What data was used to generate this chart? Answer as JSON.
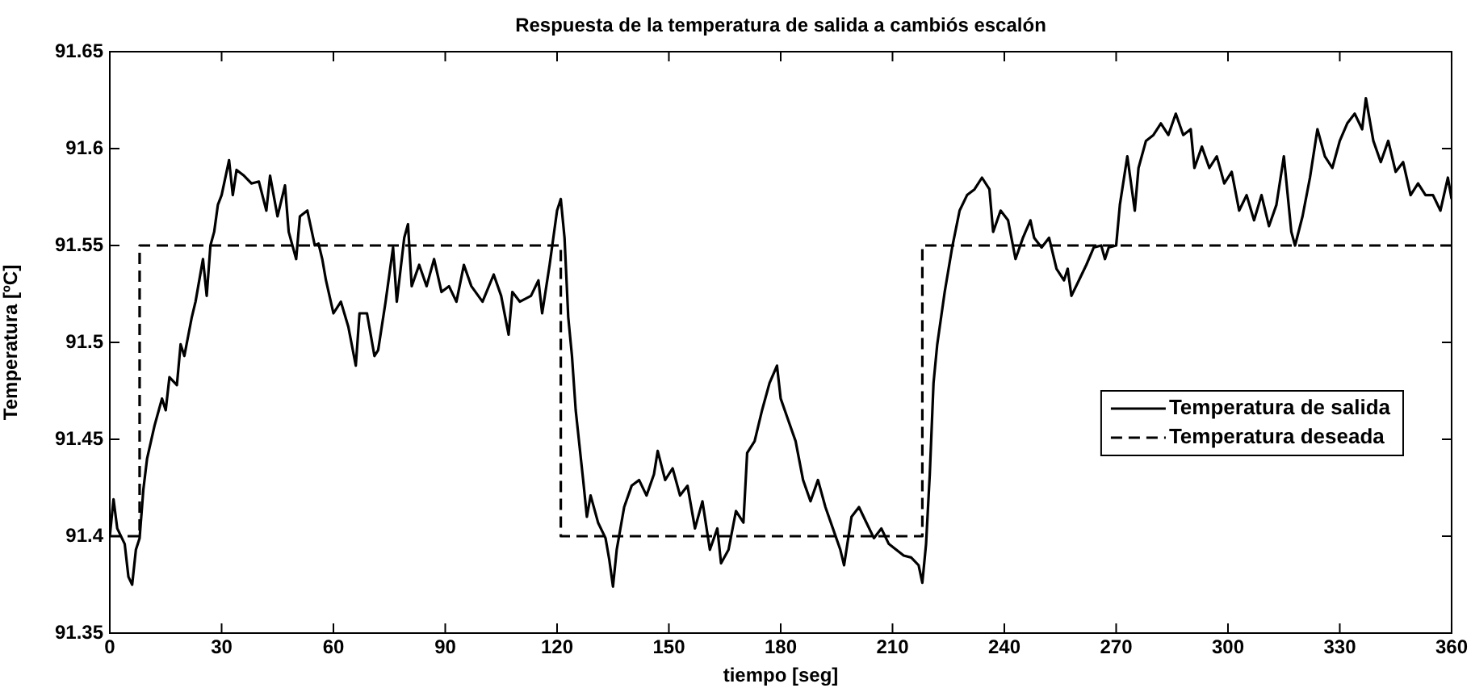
{
  "chart_data": {
    "type": "line",
    "title": "Respuesta de la temperatura de salida a cambiós escalón",
    "xlabel": "tiempo [seg]",
    "ylabel": "Temperatura [ºC]",
    "xlim": [
      0,
      360
    ],
    "xticks": [
      0,
      30,
      60,
      90,
      120,
      150,
      180,
      210,
      240,
      270,
      300,
      330,
      360
    ],
    "ylim": [
      91.35,
      91.65
    ],
    "yticks": [
      91.35,
      91.4,
      91.45,
      91.5,
      91.55,
      91.6,
      91.65
    ],
    "grid": false,
    "legend": "right",
    "marker": "none",
    "series": [
      {
        "name": "Temperatura de salida",
        "color": "#000000",
        "line_style": "solid",
        "x": [
          0,
          1,
          2,
          4,
          5,
          6,
          7,
          8,
          9,
          10,
          12,
          14,
          15,
          16,
          18,
          19,
          20,
          22,
          23,
          25,
          26,
          27,
          28,
          29,
          30,
          32,
          33,
          34,
          36,
          38,
          40,
          42,
          43,
          45,
          47,
          48,
          50,
          51,
          53,
          55,
          56,
          57,
          58,
          60,
          62,
          64,
          66,
          67,
          69,
          71,
          72,
          74,
          76,
          77,
          79,
          80,
          81,
          83,
          85,
          87,
          89,
          91,
          93,
          95,
          97,
          100,
          103,
          105,
          107,
          108,
          110,
          113,
          115,
          116,
          118,
          119,
          120,
          121,
          122,
          123,
          124,
          125,
          127,
          128,
          129,
          131,
          133,
          134,
          135,
          136,
          138,
          140,
          142,
          144,
          146,
          147,
          149,
          151,
          153,
          155,
          157,
          159,
          161,
          163,
          164,
          166,
          168,
          170,
          171,
          173,
          175,
          177,
          179,
          180,
          182,
          184,
          186,
          188,
          190,
          192,
          194,
          196,
          197,
          199,
          201,
          203,
          205,
          207,
          209,
          211,
          213,
          215,
          217,
          218,
          219,
          220,
          221,
          222,
          224,
          226,
          228,
          230,
          232,
          234,
          236,
          237,
          239,
          241,
          243,
          245,
          247,
          248,
          250,
          252,
          254,
          256,
          257,
          258,
          260,
          262,
          264,
          266,
          267,
          268,
          270,
          271,
          273,
          275,
          276,
          278,
          280,
          282,
          284,
          286,
          288,
          290,
          291,
          293,
          295,
          297,
          299,
          301,
          303,
          305,
          307,
          309,
          311,
          313,
          315,
          317,
          318,
          320,
          322,
          324,
          326,
          328,
          330,
          332,
          334,
          336,
          337,
          339,
          341,
          343,
          345,
          347,
          349,
          351,
          353,
          355,
          357,
          359,
          360
        ],
        "values": [
          91.4,
          91.419,
          91.404,
          91.396,
          91.379,
          91.375,
          91.393,
          91.399,
          91.424,
          91.44,
          91.457,
          91.471,
          91.465,
          91.482,
          91.478,
          91.499,
          91.493,
          91.513,
          91.521,
          91.543,
          91.524,
          91.55,
          91.557,
          91.571,
          91.576,
          91.594,
          91.576,
          91.589,
          91.586,
          91.582,
          91.583,
          91.568,
          91.586,
          91.565,
          91.581,
          91.557,
          91.543,
          91.565,
          91.568,
          91.55,
          91.551,
          91.543,
          91.532,
          91.515,
          91.521,
          91.508,
          91.488,
          91.515,
          91.515,
          91.493,
          91.496,
          91.521,
          91.549,
          91.521,
          91.554,
          91.561,
          91.529,
          91.54,
          91.529,
          91.543,
          91.526,
          91.529,
          91.521,
          91.54,
          91.529,
          91.521,
          91.535,
          91.524,
          91.504,
          91.526,
          91.521,
          91.524,
          91.532,
          91.515,
          91.54,
          91.554,
          91.568,
          91.574,
          91.554,
          91.513,
          91.493,
          91.465,
          91.429,
          91.41,
          91.421,
          91.407,
          91.399,
          91.388,
          91.374,
          91.393,
          91.415,
          91.426,
          91.429,
          91.421,
          91.432,
          91.444,
          91.429,
          91.435,
          91.421,
          91.426,
          91.404,
          91.418,
          91.393,
          91.404,
          91.386,
          91.393,
          91.413,
          91.407,
          91.443,
          91.449,
          91.465,
          91.479,
          91.488,
          91.471,
          91.46,
          91.449,
          91.429,
          91.418,
          91.429,
          91.415,
          91.404,
          91.393,
          91.385,
          91.41,
          91.415,
          91.407,
          91.399,
          91.404,
          91.396,
          91.393,
          91.39,
          91.389,
          91.385,
          91.376,
          91.396,
          91.432,
          91.479,
          91.499,
          91.526,
          91.549,
          91.568,
          91.576,
          91.579,
          91.585,
          91.579,
          91.557,
          91.568,
          91.563,
          91.543,
          91.554,
          91.563,
          91.554,
          91.549,
          91.554,
          91.538,
          91.532,
          91.538,
          91.524,
          91.532,
          91.54,
          91.549,
          91.55,
          91.543,
          91.549,
          91.55,
          91.571,
          91.596,
          91.568,
          91.59,
          91.604,
          91.607,
          91.613,
          91.607,
          91.618,
          91.607,
          91.61,
          91.59,
          91.601,
          91.59,
          91.596,
          91.582,
          91.588,
          91.568,
          91.576,
          91.563,
          91.576,
          91.56,
          91.571,
          91.596,
          91.557,
          91.55,
          91.565,
          91.585,
          91.61,
          91.596,
          91.59,
          91.604,
          91.613,
          91.618,
          91.61,
          91.626,
          91.604,
          91.593,
          91.604,
          91.588,
          91.593,
          91.576,
          91.582,
          91.576,
          91.576,
          91.568,
          91.585,
          91.574
        ]
      },
      {
        "name": "Temperatura deseada",
        "color": "#000000",
        "line_style": "dashed",
        "x": [
          0,
          8,
          8,
          121,
          121,
          218,
          218,
          360
        ],
        "values": [
          91.4,
          91.4,
          91.55,
          91.55,
          91.4,
          91.4,
          91.55,
          91.55
        ]
      }
    ]
  }
}
